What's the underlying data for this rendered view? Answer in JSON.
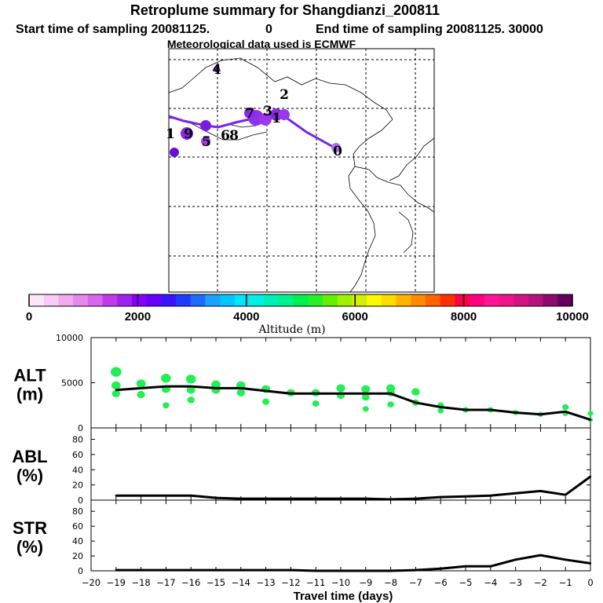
{
  "header": {
    "title": "Retroplume summary for Shangdianzi_200811",
    "start_label": "Start time of sampling 20081125.",
    "start_value": "0",
    "end_label": "End time of sampling 20081125. 30000",
    "met": "Meteorological data used is ECMWF"
  },
  "map": {
    "track_color": "#7722ee",
    "day_labels": [
      {
        "text": "0",
        "day": 0
      },
      {
        "text": "1",
        "day": 1
      },
      {
        "text": "2",
        "day": 2
      },
      {
        "text": "3",
        "day": 3
      },
      {
        "text": "4",
        "day": 4
      },
      {
        "text": "5",
        "day": 5
      },
      {
        "text": "6",
        "day": 6
      },
      {
        "text": "7",
        "day": 7
      },
      {
        "text": "8",
        "day": 8
      },
      {
        "text": "9",
        "day": 9
      },
      {
        "text": "1",
        "day": 10
      }
    ]
  },
  "colorbar": {
    "title": "Altitude (m)",
    "min": 0,
    "max": 10000,
    "labels": [
      "0",
      "2000",
      "4000",
      "6000",
      "8000",
      "10000"
    ],
    "colors": [
      "#fde8fa",
      "#f8ccf5",
      "#f0aaee",
      "#e688ec",
      "#d966ee",
      "#c03ce8",
      "#a022ee",
      "#8a00ff",
      "#6600ff",
      "#3a14ff",
      "#1e3cff",
      "#1e6cff",
      "#1ea0ff",
      "#00c8ff",
      "#00e6ff",
      "#00f0e6",
      "#00f0b4",
      "#00f28a",
      "#00f050",
      "#28f028",
      "#64f000",
      "#a0f000",
      "#d2f000",
      "#fafa00",
      "#ffdc00",
      "#ffb400",
      "#ff8c00",
      "#ff6400",
      "#ff3000",
      "#ff0044",
      "#ff0080",
      "#ff1496",
      "#f0148c",
      "#d21482",
      "#b4147a",
      "#8c0a6e",
      "#64005a"
    ]
  },
  "chart_data": [
    {
      "type": "line",
      "panel": "ALT",
      "title": "ALT",
      "ylabel": "(m)",
      "yticks": [
        "0",
        "5000",
        "10000"
      ],
      "ylim": [
        0,
        10000
      ],
      "xlim": [
        -20,
        0
      ],
      "line_color": "#000000",
      "marker_color": "#22ee55",
      "x": [
        -19,
        -18,
        -17,
        -16,
        -15,
        -14,
        -13,
        -12,
        -11,
        -10,
        -9,
        -8,
        -7,
        -6,
        -5,
        -4,
        -3,
        -2,
        -1,
        0
      ],
      "values": [
        4200,
        4400,
        4600,
        4600,
        4400,
        4400,
        4100,
        3800,
        3800,
        3800,
        3800,
        3800,
        2800,
        2300,
        2000,
        2000,
        1700,
        1500,
        1800,
        900
      ],
      "markers": [
        {
          "x": -19,
          "y": 4700
        },
        {
          "x": -19,
          "y": 3800
        },
        {
          "x": -19,
          "y": 6200
        },
        {
          "x": -18,
          "y": 4900
        },
        {
          "x": -18,
          "y": 3700
        },
        {
          "x": -17,
          "y": 5500
        },
        {
          "x": -17,
          "y": 4300
        },
        {
          "x": -17,
          "y": 2500
        },
        {
          "x": -16,
          "y": 5400
        },
        {
          "x": -16,
          "y": 4200
        },
        {
          "x": -16,
          "y": 3100
        },
        {
          "x": -15,
          "y": 4800
        },
        {
          "x": -15,
          "y": 4200
        },
        {
          "x": -14,
          "y": 4700
        },
        {
          "x": -14,
          "y": 3900
        },
        {
          "x": -13,
          "y": 4300
        },
        {
          "x": -13,
          "y": 2900
        },
        {
          "x": -12,
          "y": 3900
        },
        {
          "x": -11,
          "y": 3900
        },
        {
          "x": -11,
          "y": 2700
        },
        {
          "x": -10,
          "y": 4400
        },
        {
          "x": -10,
          "y": 3600
        },
        {
          "x": -9,
          "y": 4300
        },
        {
          "x": -9,
          "y": 3400
        },
        {
          "x": -9,
          "y": 2100
        },
        {
          "x": -8,
          "y": 4400
        },
        {
          "x": -8,
          "y": 3900
        },
        {
          "x": -8,
          "y": 2600
        },
        {
          "x": -7,
          "y": 4000
        },
        {
          "x": -7,
          "y": 2800
        },
        {
          "x": -6,
          "y": 2500
        },
        {
          "x": -6,
          "y": 1900
        },
        {
          "x": -5,
          "y": 2000
        },
        {
          "x": -4,
          "y": 2000
        },
        {
          "x": -3,
          "y": 1700
        },
        {
          "x": -2,
          "y": 1500
        },
        {
          "x": -1,
          "y": 2300
        },
        {
          "x": -1,
          "y": 1600
        },
        {
          "x": 0,
          "y": 900
        },
        {
          "x": 0,
          "y": 1600
        }
      ]
    },
    {
      "type": "line",
      "panel": "ABL",
      "title": "ABL",
      "ylabel": "(%)",
      "yticks": [
        "0",
        "20",
        "40",
        "60",
        "80"
      ],
      "ylim": [
        0,
        95
      ],
      "xlim": [
        -20,
        0
      ],
      "line_color": "#000000",
      "x": [
        -19,
        -18,
        -17,
        -16,
        -15,
        -14,
        -13,
        -12,
        -11,
        -10,
        -9,
        -8,
        -7,
        -6,
        -5,
        -4,
        -3,
        -2,
        -1,
        0
      ],
      "values": [
        6,
        6,
        6,
        6,
        3,
        2,
        2,
        2,
        2,
        2,
        2,
        1,
        2,
        4,
        5,
        6,
        9,
        12,
        7,
        31
      ]
    },
    {
      "type": "line",
      "panel": "STR",
      "title": "STR",
      "ylabel": "(%)",
      "yticks": [
        "0",
        "20",
        "40",
        "60",
        "80"
      ],
      "ylim": [
        0,
        95
      ],
      "xlim": [
        -20,
        0
      ],
      "line_color": "#000000",
      "x": [
        -19,
        -18,
        -17,
        -16,
        -15,
        -14,
        -13,
        -12,
        -11,
        -10,
        -9,
        -8,
        -7,
        -6,
        -5,
        -4,
        -3,
        -2,
        -1,
        0
      ],
      "values": [
        1,
        1,
        1,
        1,
        1,
        1,
        1,
        1,
        0,
        0,
        0,
        0,
        1,
        3,
        6,
        6,
        15,
        21,
        15,
        10
      ]
    }
  ],
  "xaxis": {
    "label": "Travel time (days)",
    "ticks": [
      "−20",
      "−19",
      "−18",
      "−17",
      "−16",
      "−15",
      "−14",
      "−13",
      "−12",
      "−11",
      "−10",
      "−9",
      "−8",
      "−7",
      "−6",
      "−5",
      "−4",
      "−3",
      "−2",
      "−1",
      "0"
    ]
  }
}
